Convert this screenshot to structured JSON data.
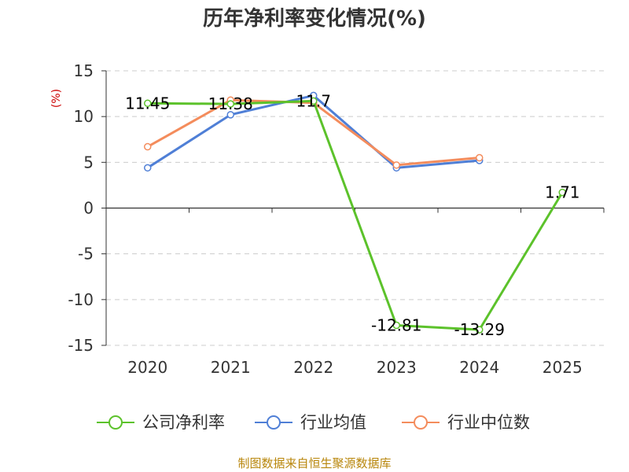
{
  "chart_data": {
    "type": "line",
    "title": "历年净利率变化情况(%)",
    "ylabel": "(%)",
    "xlabel": "",
    "categories": [
      "2020",
      "2021",
      "2022",
      "2023",
      "2024",
      "2025"
    ],
    "ylim": [
      -15,
      15
    ],
    "yticks": [
      15,
      10,
      5,
      0,
      -5,
      -10,
      -15
    ],
    "grid": true,
    "legend_position": "bottom",
    "series": [
      {
        "name": "公司净利率",
        "color": "#5cc22b",
        "values": [
          11.45,
          11.38,
          11.7,
          -12.81,
          -13.29,
          1.71
        ],
        "labels": [
          "11.45",
          "11.38",
          "11.7",
          "-12.81",
          "-13.29",
          "1.71"
        ]
      },
      {
        "name": "行业均值",
        "color": "#4f7fd6",
        "values": [
          4.4,
          10.2,
          12.3,
          4.4,
          5.2,
          null
        ]
      },
      {
        "name": "行业中位数",
        "color": "#f48c5c",
        "values": [
          6.7,
          11.8,
          11.5,
          4.7,
          5.5,
          null
        ]
      }
    ]
  },
  "source": "制图数据来自恒生聚源数据库"
}
